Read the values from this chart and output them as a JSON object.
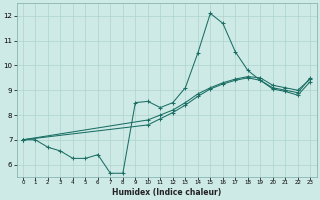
{
  "xlabel": "Humidex (Indice chaleur)",
  "bg_color": "#ceeae6",
  "line_color": "#1a6e64",
  "grid_color": "#add4cf",
  "xlim": [
    -0.5,
    23.5
  ],
  "ylim": [
    5.5,
    12.5
  ],
  "yticks": [
    6,
    7,
    8,
    9,
    10,
    11,
    12
  ],
  "xticks": [
    0,
    1,
    2,
    3,
    4,
    5,
    6,
    7,
    8,
    9,
    10,
    11,
    12,
    13,
    14,
    15,
    16,
    17,
    18,
    19,
    20,
    21,
    22,
    23
  ],
  "lines": [
    {
      "x": [
        0,
        1,
        2,
        3,
        4,
        5,
        6,
        7,
        8,
        9,
        10,
        11,
        12,
        13,
        14,
        15,
        16,
        17,
        18,
        19,
        20,
        21,
        22,
        23
      ],
      "y": [
        7.0,
        7.0,
        6.7,
        6.55,
        6.25,
        6.25,
        6.4,
        5.65,
        5.65,
        8.5,
        8.55,
        8.3,
        8.5,
        9.1,
        10.5,
        12.1,
        11.7,
        10.55,
        9.8,
        9.4,
        9.1,
        9.0,
        8.9,
        9.5
      ]
    },
    {
      "x": [
        0,
        10,
        11,
        12,
        13,
        14,
        15,
        16,
        17,
        18,
        19,
        20,
        21,
        22,
        23
      ],
      "y": [
        7.0,
        7.8,
        8.0,
        8.2,
        8.5,
        8.85,
        9.1,
        9.3,
        9.45,
        9.55,
        9.5,
        9.2,
        9.1,
        9.0,
        9.45
      ]
    },
    {
      "x": [
        0,
        10,
        11,
        12,
        13,
        14,
        15,
        16,
        17,
        18,
        19,
        20,
        21,
        22,
        23
      ],
      "y": [
        7.0,
        7.6,
        7.85,
        8.1,
        8.4,
        8.75,
        9.05,
        9.25,
        9.4,
        9.5,
        9.4,
        9.05,
        8.95,
        8.8,
        9.35
      ]
    }
  ]
}
